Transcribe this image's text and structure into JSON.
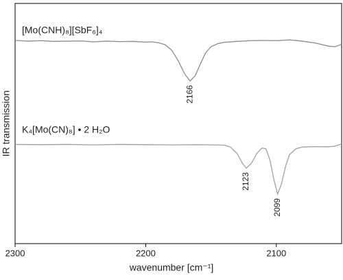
{
  "chart_data": {
    "type": "line",
    "xlabel": "wavenumber [cm⁻¹]",
    "ylabel": "IR transmission",
    "xlim": [
      2300,
      2050
    ],
    "xticks": [
      2300,
      2200,
      2100
    ],
    "ylim": [
      0,
      100
    ],
    "series": [
      {
        "name": "[Mo(CNH)₈][SbF₆]₄",
        "color": "#8c8c8c",
        "x": [
          2300,
          2290,
          2280,
          2270,
          2260,
          2250,
          2240,
          2230,
          2220,
          2210,
          2200,
          2195,
          2190,
          2185,
          2180,
          2175,
          2170,
          2166,
          2162,
          2158,
          2154,
          2150,
          2145,
          2140,
          2130,
          2120,
          2110,
          2100,
          2090,
          2080,
          2070,
          2060,
          2055,
          2050
        ],
        "values": [
          84.6,
          84.3,
          84.5,
          84.2,
          84.3,
          84.4,
          84.0,
          84.3,
          84.1,
          84.2,
          83.9,
          84.0,
          83.6,
          82.8,
          80.5,
          76,
          70.5,
          67.7,
          70,
          75,
          79.5,
          82,
          83.2,
          83.8,
          84.2,
          84.5,
          84.6,
          84.5,
          84.8,
          84.3,
          83.5,
          82.2,
          82.0,
          83.0
        ],
        "annotations": [
          {
            "x": 2166,
            "label": "2166"
          }
        ]
      },
      {
        "name": "K₄[Mo(CN)₈] • 2 H₂O",
        "color": "#a0a0a0",
        "x": [
          2300,
          2280,
          2260,
          2240,
          2220,
          2200,
          2180,
          2160,
          2150,
          2140,
          2135,
          2130,
          2126,
          2123,
          2119,
          2115,
          2111,
          2108,
          2105,
          2102,
          2099,
          2096,
          2093,
          2090,
          2085,
          2080,
          2070,
          2060,
          2055,
          2050
        ],
        "values": [
          41.3,
          41.2,
          41.3,
          41.1,
          41.3,
          41.2,
          41.1,
          41.2,
          41.1,
          41.0,
          40.2,
          37.5,
          33.5,
          31.4,
          33.5,
          37.5,
          39.8,
          39.5,
          35,
          27,
          20.6,
          25,
          32,
          37,
          39.5,
          40.2,
          40.4,
          40.3,
          40.6,
          41.5
        ],
        "annotations": [
          {
            "x": 2123,
            "label": "2123"
          },
          {
            "x": 2099,
            "label": "2099"
          }
        ]
      }
    ]
  }
}
